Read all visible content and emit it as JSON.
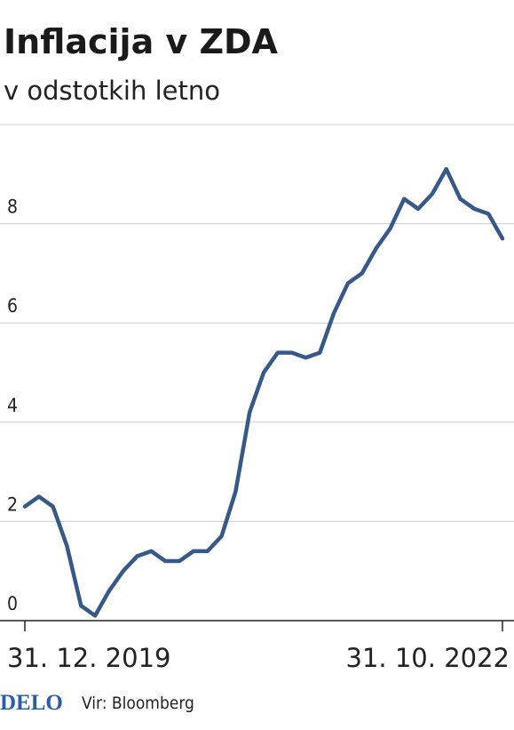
{
  "chart_data": {
    "type": "line",
    "title": "Inflacija v ZDA",
    "subtitle": "v odstotkih letno",
    "categories": [
      "31. 12. 2019",
      null,
      null,
      null,
      null,
      null,
      null,
      null,
      null,
      null,
      null,
      null,
      null,
      null,
      null,
      null,
      null,
      null,
      null,
      null,
      null,
      null,
      null,
      null,
      null,
      null,
      null,
      null,
      null,
      null,
      null,
      null,
      null,
      null,
      "31. 10. 2022"
    ],
    "series": [
      {
        "color": "#36598a",
        "values": [
          2.3,
          2.5,
          2.3,
          1.5,
          0.3,
          0.1,
          0.6,
          1.0,
          1.3,
          1.4,
          1.2,
          1.2,
          1.4,
          1.4,
          1.7,
          2.6,
          4.2,
          5.0,
          5.4,
          5.4,
          5.3,
          5.4,
          6.2,
          6.8,
          7.0,
          7.5,
          7.9,
          8.5,
          8.3,
          8.6,
          9.1,
          8.5,
          8.3,
          8.2,
          7.7
        ]
      }
    ],
    "ylim": [
      0,
      10
    ],
    "yticks": [
      0,
      2,
      4,
      6,
      8
    ],
    "grid": true
  },
  "footer": {
    "brand": "DELO",
    "source": "Vir: Bloomberg"
  }
}
